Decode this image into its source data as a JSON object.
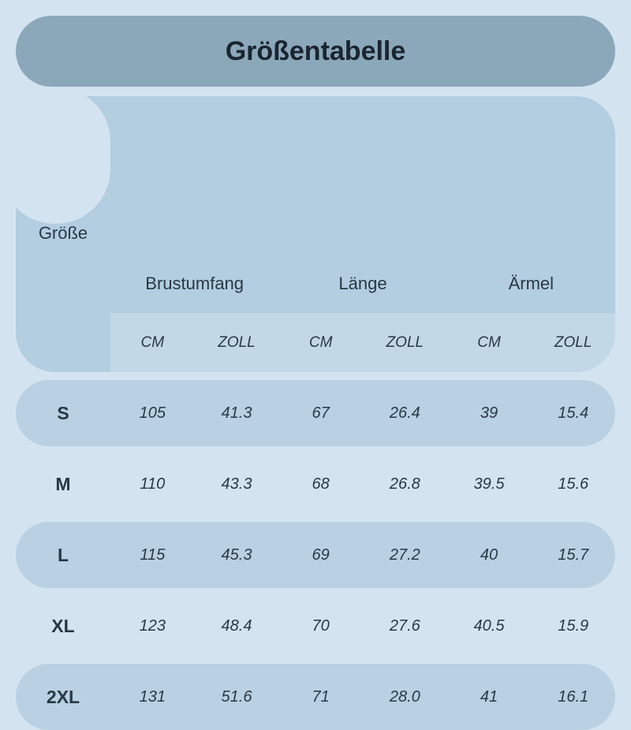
{
  "title": "Größentabelle",
  "header": {
    "size_label": "Größe",
    "measurements": [
      "Brustumfang",
      "Länge",
      "Ärmel"
    ],
    "units": [
      "CM",
      "ZOLL",
      "CM",
      "ZOLL",
      "CM",
      "ZOLL"
    ]
  },
  "rows": [
    {
      "size": "S",
      "values": [
        "105",
        "41.3",
        "67",
        "26.4",
        "39",
        "15.4"
      ],
      "shaded": true
    },
    {
      "size": "M",
      "values": [
        "110",
        "43.3",
        "68",
        "26.8",
        "39.5",
        "15.6"
      ],
      "shaded": false
    },
    {
      "size": "L",
      "values": [
        "115",
        "45.3",
        "69",
        "27.2",
        "40",
        "15.7"
      ],
      "shaded": true
    },
    {
      "size": "XL",
      "values": [
        "123",
        "48.4",
        "70",
        "27.6",
        "40.5",
        "15.9"
      ],
      "shaded": false
    },
    {
      "size": "2XL",
      "values": [
        "131",
        "51.6",
        "71",
        "28.0",
        "41",
        "16.1"
      ],
      "shaded": true
    }
  ],
  "style": {
    "type": "table",
    "background_color": "#d3e4f0",
    "title_bg": "#8ba8ba",
    "header_bg": "#b3cee0",
    "unit_row_bg": "#c2d8e6",
    "row_shaded_bg": "#b9d1e2",
    "text_color": "#2a3845",
    "title_fontsize": 34,
    "header_fontsize": 22,
    "unit_fontsize": 19,
    "size_fontsize": 23,
    "data_fontsize": 20,
    "border_radius": 50
  }
}
